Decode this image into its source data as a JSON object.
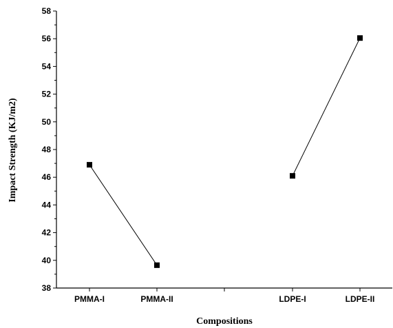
{
  "chart_data": {
    "type": "line",
    "categories": [
      "PMMA-I",
      "PMMA-II",
      "",
      "LDPE-I",
      "LDPE-II"
    ],
    "series": [
      {
        "segment": "PMMA",
        "points": [
          {
            "category": "PMMA-I",
            "value": 46.9
          },
          {
            "category": "PMMA-II",
            "value": 39.65
          }
        ]
      },
      {
        "segment": "LDPE",
        "points": [
          {
            "category": "LDPE-I",
            "value": 46.1
          },
          {
            "category": "LDPE-II",
            "value": 56.05
          }
        ]
      }
    ],
    "title": "",
    "xlabel": "Compositions",
    "ylabel": "Impact Strength (KJ/m2)",
    "ylim": [
      38,
      58
    ],
    "yticks": [
      38,
      40,
      42,
      44,
      46,
      48,
      50,
      52,
      54,
      56,
      58
    ],
    "grid": false,
    "legend": "none",
    "marker": "square",
    "color": "#000000"
  }
}
